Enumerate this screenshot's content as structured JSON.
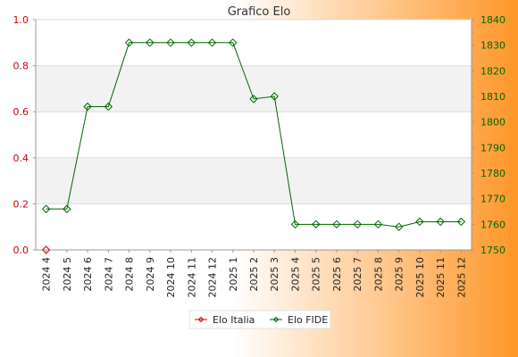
{
  "chart_data": {
    "type": "line",
    "title": "Grafico Elo",
    "categories": [
      "2024 4",
      "2024 5",
      "2024 6",
      "2024 7",
      "2024 8",
      "2024 9",
      "2024 10",
      "2024 11",
      "2024 12",
      "2025 1",
      "2025 2",
      "2025 3",
      "2025 4",
      "2025 5",
      "2025 6",
      "2025 7",
      "2025 8",
      "2025 9",
      "2025 10",
      "2025 11",
      "2025 12"
    ],
    "left_axis": {
      "ylim": [
        0,
        1
      ],
      "ticks": [
        "0.0",
        "0.2",
        "0.4",
        "0.6",
        "0.8",
        "1.0"
      ]
    },
    "right_axis": {
      "ylim": [
        1750,
        1840
      ],
      "ticks": [
        "1750",
        "1760",
        "1770",
        "1780",
        "1790",
        "1800",
        "1810",
        "1820",
        "1830",
        "1840"
      ]
    },
    "series": [
      {
        "name": "Elo Italia",
        "axis": "left",
        "color": "#cc0000",
        "values": [
          0,
          null,
          null,
          null,
          null,
          null,
          null,
          null,
          null,
          null,
          null,
          null,
          null,
          null,
          null,
          null,
          null,
          null,
          null,
          null,
          null
        ]
      },
      {
        "name": "Elo FIDE",
        "axis": "right",
        "color": "#006600",
        "values": [
          1766,
          1766,
          1806,
          1806,
          1831,
          1831,
          1831,
          1831,
          1831,
          1831,
          1809,
          1810,
          1760,
          1760,
          1760,
          1760,
          1760,
          1759,
          1761,
          1761,
          1761
        ]
      }
    ],
    "grid": true,
    "legend_position": "bottom"
  }
}
